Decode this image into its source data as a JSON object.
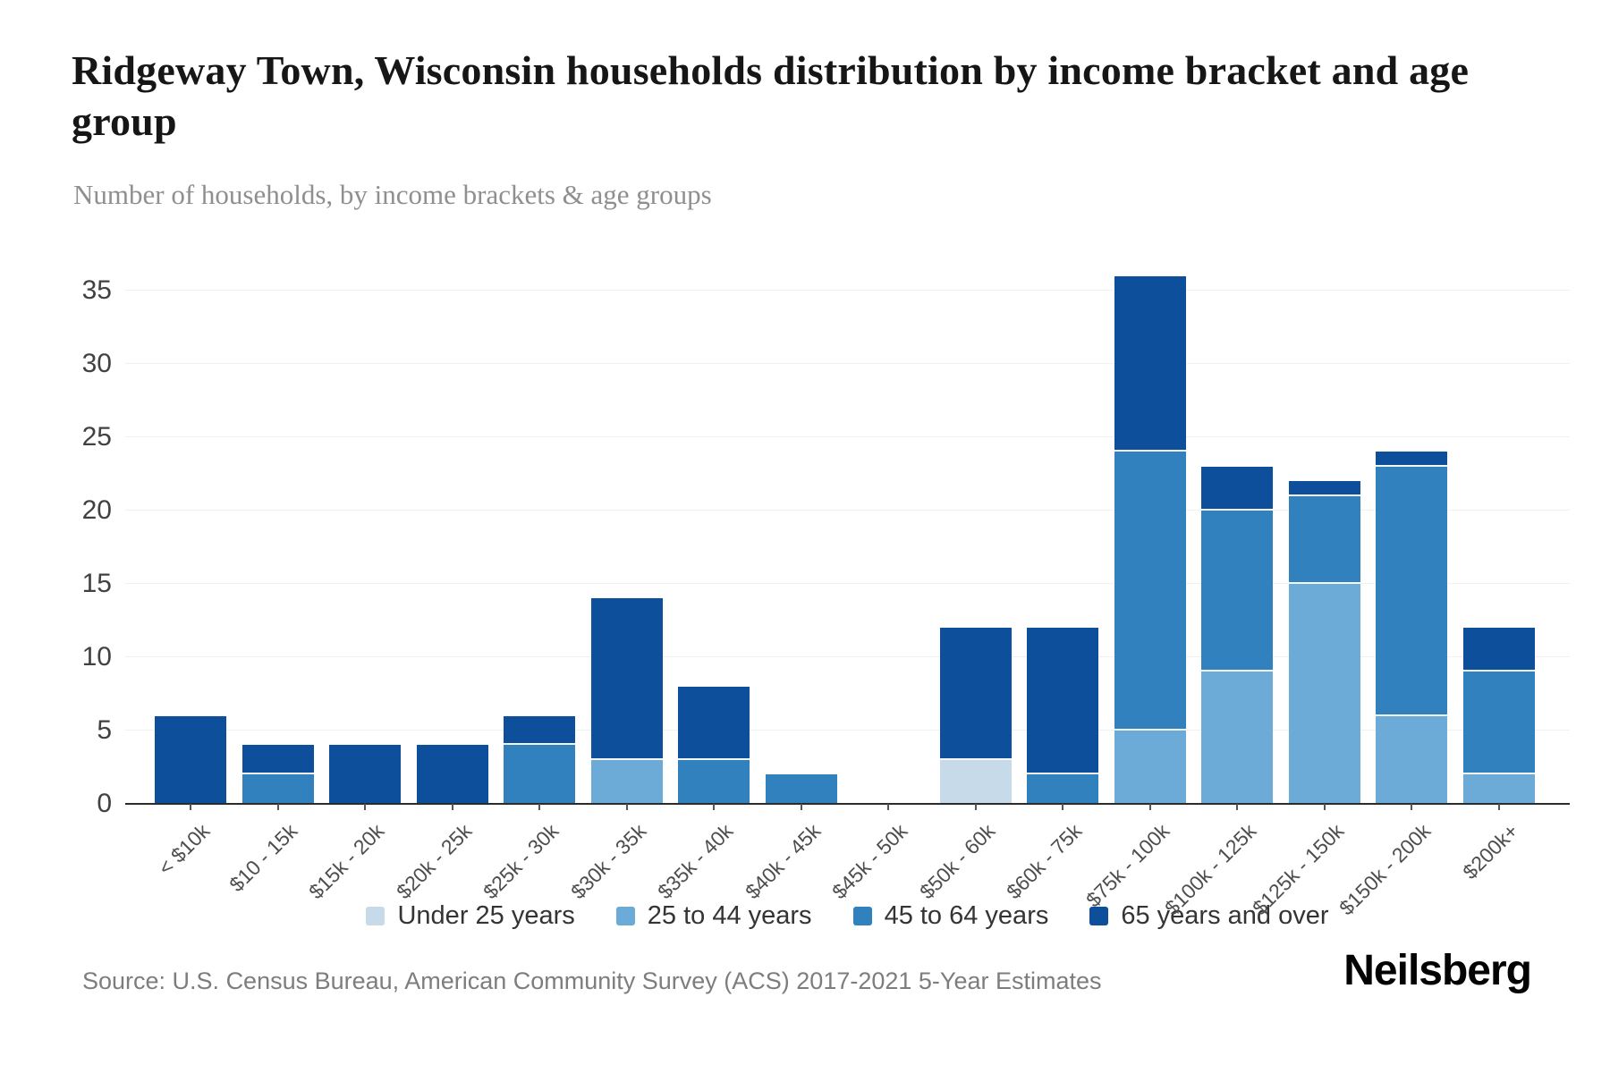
{
  "header": {
    "title": "Ridgeway Town, Wisconsin households distribution by income bracket and age group",
    "subtitle": "Number of households, by income brackets & age groups"
  },
  "chart_data": {
    "type": "bar",
    "stacked": true,
    "title": "Ridgeway Town, Wisconsin households distribution by income bracket and age group",
    "subtitle": "Number of households, by income brackets & age groups",
    "xlabel": "",
    "ylabel": "",
    "ylim": [
      0,
      36
    ],
    "yticks": [
      0,
      5,
      10,
      15,
      20,
      25,
      30,
      35
    ],
    "grid": "horizontal",
    "legend_position": "bottom-center",
    "categories": [
      "< $10k",
      "$10 - 15k",
      "$15k - 20k",
      "$20k - 25k",
      "$25k - 30k",
      "$30k - 35k",
      "$35k - 40k",
      "$40k - 45k",
      "$45k - 50k",
      "$50k - 60k",
      "$60k - 75k",
      "$75k - 100k",
      "$100k - 125k",
      "$125k - 150k",
      "$150k - 200k",
      "$200k+"
    ],
    "series": [
      {
        "name": "Under 25 years",
        "color": "#C7DAEA",
        "values": [
          0,
          0,
          0,
          0,
          0,
          0,
          0,
          0,
          0,
          3,
          0,
          0,
          0,
          0,
          0,
          0
        ]
      },
      {
        "name": "25 to 44 years",
        "color": "#6CABD8",
        "values": [
          0,
          0,
          0,
          0,
          0,
          3,
          0,
          0,
          0,
          0,
          0,
          5,
          9,
          15,
          6,
          2
        ]
      },
      {
        "name": "45 to 64 years",
        "color": "#3181BF",
        "values": [
          0,
          2,
          0,
          0,
          4,
          0,
          3,
          2,
          0,
          0,
          2,
          19,
          11,
          6,
          17,
          7
        ]
      },
      {
        "name": "65 years and over",
        "color": "#0E4F9C",
        "values": [
          6,
          2,
          4,
          4,
          2,
          11,
          5,
          0,
          0,
          9,
          10,
          12,
          3,
          1,
          1,
          3
        ]
      }
    ],
    "totals": [
      6,
      4,
      4,
      4,
      6,
      14,
      8,
      2,
      0,
      12,
      12,
      36,
      23,
      22,
      24,
      12
    ]
  },
  "footer": {
    "source": "Source: U.S. Census Bureau, American Community Survey (ACS) 2017-2021 5-Year Estimates",
    "brand": "Neilsberg"
  },
  "colors": {
    "background": "#ffffff",
    "gridline": "#f1f1f1",
    "axis_line": "#2b2b2b",
    "title_text": "#161616",
    "subtitle_text": "#8f8f8f",
    "tick_text": "#414141",
    "xlabel_text": "#4e4e4e",
    "legend_text": "#343434",
    "source_text": "#7d7d7d"
  }
}
